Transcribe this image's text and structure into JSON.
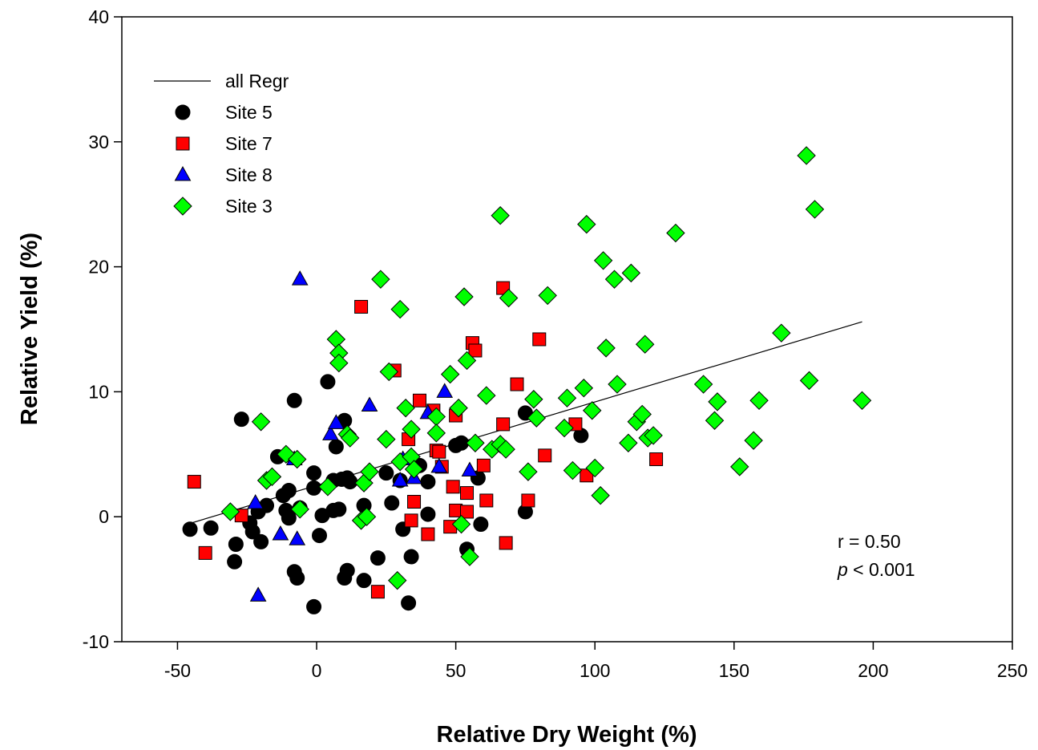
{
  "chart_data": {
    "type": "scatter",
    "xlabel": "Relative Dry Weight (%)",
    "ylabel": "Relative Yield (%)",
    "xlim": [
      -70,
      250
    ],
    "ylim": [
      -10,
      40
    ],
    "x_ticks": [
      "-50",
      "0",
      "50",
      "100",
      "150",
      "200",
      "250"
    ],
    "y_ticks": [
      "-10",
      "0",
      "10",
      "20",
      "30",
      "40"
    ],
    "legend_position": "top-left",
    "regression": {
      "name": "all Regr",
      "x": [
        -45,
        196
      ],
      "y": [
        -0.5,
        15.6
      ],
      "color": "#000000"
    },
    "series": [
      {
        "name": "Site 5",
        "marker": "circle",
        "color": "#000000",
        "points": [
          [
            -45.5,
            -1.0
          ],
          [
            -38,
            -0.9
          ],
          [
            -29,
            -2.2
          ],
          [
            -29.5,
            -3.6
          ],
          [
            -27,
            7.8
          ],
          [
            -23,
            -1.2
          ],
          [
            -24,
            -0.5
          ],
          [
            -21,
            0.4
          ],
          [
            -20,
            -2.0
          ],
          [
            -18,
            0.9
          ],
          [
            -14,
            4.8
          ],
          [
            -12,
            1.7
          ],
          [
            -11,
            0.5
          ],
          [
            -10,
            2.1
          ],
          [
            -10,
            -0.1
          ],
          [
            -8,
            -4.4
          ],
          [
            -7,
            -4.9
          ],
          [
            -8,
            9.3
          ],
          [
            -6,
            0.7
          ],
          [
            -1,
            3.5
          ],
          [
            -1,
            2.3
          ],
          [
            -1,
            -7.2
          ],
          [
            1,
            -1.5
          ],
          [
            2,
            0.1
          ],
          [
            4,
            10.8
          ],
          [
            6,
            2.9
          ],
          [
            6,
            0.5
          ],
          [
            7,
            5.6
          ],
          [
            8,
            0.6
          ],
          [
            9,
            3.0
          ],
          [
            10,
            -4.9
          ],
          [
            10,
            7.7
          ],
          [
            11,
            3.1
          ],
          [
            11,
            -4.3
          ],
          [
            12,
            2.8
          ],
          [
            17,
            -5.1
          ],
          [
            17,
            0.9
          ],
          [
            22,
            -3.3
          ],
          [
            25,
            3.5
          ],
          [
            27,
            1.1
          ],
          [
            30,
            2.9
          ],
          [
            31,
            -1.0
          ],
          [
            33,
            -6.9
          ],
          [
            34,
            -3.2
          ],
          [
            37,
            4.1
          ],
          [
            40,
            2.8
          ],
          [
            40,
            0.2
          ],
          [
            50,
            5.7
          ],
          [
            52,
            5.9
          ],
          [
            54,
            -2.6
          ],
          [
            58,
            3.1
          ],
          [
            59,
            -0.6
          ],
          [
            75,
            0.4
          ],
          [
            75,
            8.3
          ],
          [
            95,
            6.5
          ]
        ]
      },
      {
        "name": "Site 7",
        "marker": "square",
        "color": "#ff0000",
        "points": [
          [
            -44,
            2.8
          ],
          [
            -40,
            -2.9
          ],
          [
            -27,
            0.1
          ],
          [
            16,
            16.8
          ],
          [
            22,
            -6.0
          ],
          [
            28,
            11.7
          ],
          [
            33,
            6.2
          ],
          [
            34,
            -0.3
          ],
          [
            35,
            1.2
          ],
          [
            37,
            9.3
          ],
          [
            40,
            -1.4
          ],
          [
            42,
            8.5
          ],
          [
            43,
            5.3
          ],
          [
            44,
            5.2
          ],
          [
            45,
            4.0
          ],
          [
            48,
            -0.8
          ],
          [
            49,
            2.4
          ],
          [
            50,
            0.5
          ],
          [
            50,
            8.1
          ],
          [
            54,
            0.4
          ],
          [
            54,
            1.9
          ],
          [
            56,
            13.9
          ],
          [
            57,
            13.3
          ],
          [
            60,
            4.1
          ],
          [
            61,
            1.3
          ],
          [
            67,
            18.3
          ],
          [
            67,
            7.4
          ],
          [
            68,
            -2.1
          ],
          [
            72,
            10.6
          ],
          [
            76,
            1.3
          ],
          [
            80,
            14.2
          ],
          [
            82,
            4.9
          ],
          [
            93,
            7.4
          ],
          [
            97,
            3.3
          ],
          [
            122,
            4.6
          ]
        ]
      },
      {
        "name": "Site 8",
        "marker": "triangle",
        "color": "#0000ff",
        "points": [
          [
            -22,
            1.1
          ],
          [
            -21,
            -6.3
          ],
          [
            -13,
            -1.4
          ],
          [
            -8,
            4.6
          ],
          [
            -7,
            -1.8
          ],
          [
            -6,
            19.0
          ],
          [
            5,
            6.6
          ],
          [
            7,
            7.5
          ],
          [
            19,
            8.9
          ],
          [
            30,
            2.9
          ],
          [
            31,
            4.6
          ],
          [
            35,
            3.1
          ],
          [
            40,
            8.3
          ],
          [
            44,
            4.0
          ],
          [
            46,
            10.0
          ],
          [
            55,
            3.7
          ]
        ]
      },
      {
        "name": "Site 3",
        "marker": "diamond",
        "color": "#00ff00",
        "points": [
          [
            -31,
            0.4
          ],
          [
            -20,
            7.6
          ],
          [
            -18,
            2.9
          ],
          [
            -16,
            3.2
          ],
          [
            -11,
            5.0
          ],
          [
            -7,
            4.6
          ],
          [
            -6,
            0.6
          ],
          [
            4,
            2.4
          ],
          [
            7,
            14.2
          ],
          [
            8,
            13.1
          ],
          [
            8,
            12.3
          ],
          [
            11,
            6.6
          ],
          [
            12,
            6.3
          ],
          [
            16,
            -0.3
          ],
          [
            17,
            2.7
          ],
          [
            18,
            0.0
          ],
          [
            19,
            3.6
          ],
          [
            23,
            19.0
          ],
          [
            25,
            6.2
          ],
          [
            26,
            11.6
          ],
          [
            29,
            -5.1
          ],
          [
            30,
            4.4
          ],
          [
            30,
            16.6
          ],
          [
            32,
            8.7
          ],
          [
            34,
            7.0
          ],
          [
            34,
            4.8
          ],
          [
            35,
            3.8
          ],
          [
            43,
            8.0
          ],
          [
            43,
            6.7
          ],
          [
            48,
            11.4
          ],
          [
            51,
            8.7
          ],
          [
            52,
            -0.6
          ],
          [
            53,
            17.6
          ],
          [
            54,
            12.5
          ],
          [
            55,
            -3.2
          ],
          [
            57,
            5.9
          ],
          [
            61,
            9.7
          ],
          [
            63,
            5.4
          ],
          [
            66,
            24.1
          ],
          [
            66,
            5.8
          ],
          [
            68,
            5.4
          ],
          [
            69,
            17.5
          ],
          [
            76,
            3.6
          ],
          [
            78,
            9.4
          ],
          [
            79,
            7.9
          ],
          [
            83,
            17.7
          ],
          [
            89,
            7.1
          ],
          [
            90,
            9.5
          ],
          [
            92,
            3.7
          ],
          [
            96,
            10.3
          ],
          [
            97,
            23.4
          ],
          [
            99,
            8.5
          ],
          [
            100,
            3.9
          ],
          [
            102,
            1.7
          ],
          [
            103,
            20.5
          ],
          [
            104,
            13.5
          ],
          [
            107,
            19.0
          ],
          [
            108,
            10.6
          ],
          [
            112,
            5.9
          ],
          [
            113,
            19.5
          ],
          [
            115,
            7.6
          ],
          [
            117,
            8.2
          ],
          [
            118,
            13.8
          ],
          [
            119,
            6.3
          ],
          [
            121,
            6.5
          ],
          [
            129,
            22.7
          ],
          [
            139,
            10.6
          ],
          [
            143,
            7.7
          ],
          [
            144,
            9.2
          ],
          [
            152,
            4.0
          ],
          [
            157,
            6.1
          ],
          [
            159,
            9.3
          ],
          [
            167,
            14.7
          ],
          [
            176,
            28.9
          ],
          [
            177,
            10.9
          ],
          [
            179,
            24.6
          ],
          [
            196,
            9.3
          ]
        ]
      }
    ],
    "annotations": {
      "r_text": "r = 0.50",
      "p_symbol": "p",
      "p_rest": " < 0.001"
    }
  }
}
